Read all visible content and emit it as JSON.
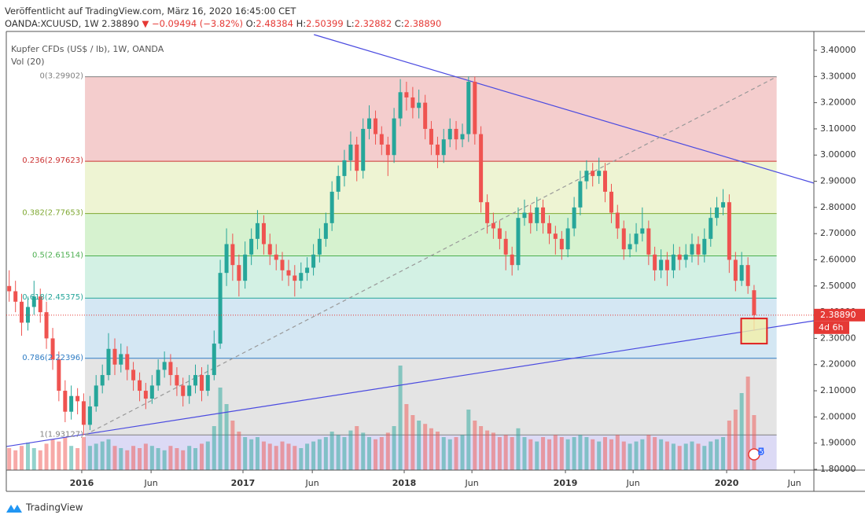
{
  "header": {
    "published": "Veröffentlicht auf TradingView.com, März 16, 2020 16:45:00 CET",
    "symbol": "OANDA:XCUUSD, 1W 2.38890",
    "change": "▼ −0.09494 (−3.82%)",
    "o_label": "O:",
    "o": "2.48384",
    "h_label": "H:",
    "h": "2.50399",
    "l_label": "L:",
    "l": "2.32882",
    "c_label": "C:",
    "c": "2.38890"
  },
  "legend": {
    "instrument": "Kupfer CFDs (US$ / lb), 1W, OANDA",
    "volume": "Vol (20)"
  },
  "footer": {
    "brand": "TradingView"
  },
  "chart_data": {
    "type": "candlestick",
    "up_color": "#26a69a",
    "down_color": "#ef5350",
    "xlim": [
      2015.532,
      2020.541
    ],
    "ylim": [
      1.797,
      3.472
    ],
    "grid": false,
    "xticks": [
      2016,
      {
        "value": 2016.43,
        "label": "Jun"
      },
      2017,
      {
        "value": 2017.43,
        "label": "Jun"
      },
      2018,
      {
        "value": 2018.42,
        "label": "Jun"
      },
      2019,
      {
        "value": 2019.42,
        "label": "Jun"
      },
      2020,
      {
        "value": 2020.42,
        "label": "Jun"
      }
    ],
    "yticks": [
      {
        "value": 3.4,
        "label": "3.40000"
      },
      {
        "value": 3.3,
        "label": "3.30000"
      },
      {
        "value": 3.2,
        "label": "3.20000"
      },
      {
        "value": 3.1,
        "label": "3.10000"
      },
      {
        "value": 3.0,
        "label": "3.00000"
      },
      {
        "value": 2.9,
        "label": "2.90000"
      },
      {
        "value": 2.8,
        "label": "2.80000"
      },
      {
        "value": 2.7,
        "label": "2.70000"
      },
      {
        "value": 2.6,
        "label": "2.60000"
      },
      {
        "value": 2.5,
        "label": "2.50000"
      },
      {
        "value": 2.4,
        "label": "2.40000"
      },
      {
        "value": 2.3,
        "label": "2.30000"
      },
      {
        "value": 2.2,
        "label": "2.20000"
      },
      {
        "value": 2.1,
        "label": "2.10000"
      },
      {
        "value": 2.0,
        "label": "2.00000"
      },
      {
        "value": 1.9,
        "label": "1.90000"
      },
      {
        "value": 1.8,
        "label": "1.80000"
      }
    ],
    "x": [
      2015.55,
      2015.589,
      2015.627,
      2015.666,
      2015.704,
      2015.743,
      2015.781,
      2015.82,
      2015.858,
      2015.897,
      2015.935,
      2015.974,
      2016.012,
      2016.051,
      2016.089,
      2016.128,
      2016.166,
      2016.205,
      2016.243,
      2016.282,
      2016.32,
      2016.359,
      2016.397,
      2016.436,
      2016.474,
      2016.513,
      2016.551,
      2016.59,
      2016.628,
      2016.667,
      2016.705,
      2016.744,
      2016.782,
      2016.821,
      2016.859,
      2016.898,
      2016.936,
      2016.975,
      2017.013,
      2017.052,
      2017.09,
      2017.129,
      2017.167,
      2017.206,
      2017.244,
      2017.283,
      2017.321,
      2017.36,
      2017.398,
      2017.437,
      2017.475,
      2017.514,
      2017.552,
      2017.591,
      2017.629,
      2017.668,
      2017.706,
      2017.745,
      2017.783,
      2017.822,
      2017.86,
      2017.899,
      2017.937,
      2017.976,
      2018.014,
      2018.053,
      2018.091,
      2018.13,
      2018.168,
      2018.207,
      2018.245,
      2018.284,
      2018.322,
      2018.361,
      2018.399,
      2018.438,
      2018.476,
      2018.515,
      2018.553,
      2018.592,
      2018.63,
      2018.669,
      2018.707,
      2018.746,
      2018.784,
      2018.823,
      2018.861,
      2018.9,
      2018.938,
      2018.977,
      2019.015,
      2019.054,
      2019.092,
      2019.131,
      2019.169,
      2019.208,
      2019.246,
      2019.285,
      2019.323,
      2019.362,
      2019.4,
      2019.439,
      2019.477,
      2019.516,
      2019.554,
      2019.593,
      2019.631,
      2019.67,
      2019.708,
      2019.747,
      2019.785,
      2019.824,
      2019.862,
      2019.901,
      2019.939,
      2019.978,
      2020.016,
      2020.055,
      2020.093,
      2020.132,
      2020.17
    ],
    "ohlc": [
      [
        2.5,
        2.56,
        2.44,
        2.48
      ],
      [
        2.48,
        2.52,
        2.4,
        2.44
      ],
      [
        2.44,
        2.47,
        2.31,
        2.36
      ],
      [
        2.36,
        2.46,
        2.33,
        2.42
      ],
      [
        2.42,
        2.52,
        2.39,
        2.46
      ],
      [
        2.46,
        2.49,
        2.36,
        2.4
      ],
      [
        2.4,
        2.44,
        2.26,
        2.3
      ],
      [
        2.3,
        2.34,
        2.18,
        2.22
      ],
      [
        2.22,
        2.25,
        2.06,
        2.1
      ],
      [
        2.1,
        2.14,
        1.98,
        2.02
      ],
      [
        2.02,
        2.12,
        1.99,
        2.08
      ],
      [
        2.08,
        2.11,
        2.01,
        2.06
      ],
      [
        2.06,
        2.09,
        1.93,
        1.97
      ],
      [
        1.97,
        2.08,
        1.95,
        2.04
      ],
      [
        2.04,
        2.16,
        2.02,
        2.12
      ],
      [
        2.12,
        2.2,
        2.09,
        2.16
      ],
      [
        2.16,
        2.32,
        2.14,
        2.26
      ],
      [
        2.26,
        2.3,
        2.16,
        2.2
      ],
      [
        2.2,
        2.28,
        2.17,
        2.24
      ],
      [
        2.24,
        2.27,
        2.14,
        2.18
      ],
      [
        2.18,
        2.21,
        2.1,
        2.14
      ],
      [
        2.14,
        2.17,
        2.06,
        2.1
      ],
      [
        2.1,
        2.13,
        2.03,
        2.07
      ],
      [
        2.07,
        2.16,
        2.05,
        2.12
      ],
      [
        2.12,
        2.22,
        2.1,
        2.18
      ],
      [
        2.18,
        2.25,
        2.15,
        2.21
      ],
      [
        2.21,
        2.24,
        2.12,
        2.16
      ],
      [
        2.16,
        2.19,
        2.08,
        2.12
      ],
      [
        2.12,
        2.15,
        2.04,
        2.08
      ],
      [
        2.08,
        2.16,
        2.05,
        2.12
      ],
      [
        2.12,
        2.2,
        2.09,
        2.16
      ],
      [
        2.16,
        2.19,
        2.06,
        2.1
      ],
      [
        2.1,
        2.2,
        2.08,
        2.16
      ],
      [
        2.16,
        2.33,
        2.14,
        2.28
      ],
      [
        2.28,
        2.6,
        2.26,
        2.55
      ],
      [
        2.55,
        2.72,
        2.5,
        2.66
      ],
      [
        2.66,
        2.7,
        2.52,
        2.58
      ],
      [
        2.58,
        2.62,
        2.46,
        2.52
      ],
      [
        2.52,
        2.67,
        2.49,
        2.62
      ],
      [
        2.62,
        2.72,
        2.58,
        2.68
      ],
      [
        2.68,
        2.79,
        2.64,
        2.74
      ],
      [
        2.74,
        2.77,
        2.62,
        2.66
      ],
      [
        2.66,
        2.7,
        2.58,
        2.62
      ],
      [
        2.62,
        2.66,
        2.56,
        2.6
      ],
      [
        2.6,
        2.63,
        2.52,
        2.56
      ],
      [
        2.56,
        2.6,
        2.5,
        2.54
      ],
      [
        2.54,
        2.58,
        2.46,
        2.52
      ],
      [
        2.52,
        2.59,
        2.49,
        2.55
      ],
      [
        2.55,
        2.61,
        2.52,
        2.57
      ],
      [
        2.57,
        2.66,
        2.54,
        2.62
      ],
      [
        2.62,
        2.72,
        2.59,
        2.68
      ],
      [
        2.68,
        2.78,
        2.65,
        2.74
      ],
      [
        2.74,
        2.9,
        2.71,
        2.86
      ],
      [
        2.86,
        2.96,
        2.83,
        2.92
      ],
      [
        2.92,
        3.02,
        2.88,
        2.98
      ],
      [
        2.98,
        3.09,
        2.94,
        3.04
      ],
      [
        3.04,
        3.07,
        2.9,
        2.94
      ],
      [
        2.94,
        3.14,
        2.91,
        3.1
      ],
      [
        3.1,
        3.19,
        3.06,
        3.14
      ],
      [
        3.14,
        3.17,
        3.04,
        3.08
      ],
      [
        3.08,
        3.11,
        3.0,
        3.04
      ],
      [
        3.04,
        3.07,
        2.92,
        3.0
      ],
      [
        3.0,
        3.18,
        2.97,
        3.14
      ],
      [
        3.14,
        3.29,
        3.11,
        3.24
      ],
      [
        3.24,
        3.28,
        3.17,
        3.22
      ],
      [
        3.22,
        3.26,
        3.14,
        3.18
      ],
      [
        3.18,
        3.25,
        3.14,
        3.2
      ],
      [
        3.2,
        3.23,
        3.06,
        3.1
      ],
      [
        3.1,
        3.13,
        3.0,
        3.04
      ],
      [
        3.04,
        3.07,
        2.95,
        3.0
      ],
      [
        3.0,
        3.1,
        2.97,
        3.06
      ],
      [
        3.06,
        3.14,
        3.03,
        3.1
      ],
      [
        3.1,
        3.13,
        3.02,
        3.06
      ],
      [
        3.06,
        3.12,
        3.03,
        3.08
      ],
      [
        3.08,
        3.3,
        3.05,
        3.28
      ],
      [
        3.28,
        3.3,
        3.04,
        3.08
      ],
      [
        3.08,
        3.11,
        2.78,
        2.82
      ],
      [
        2.82,
        2.85,
        2.7,
        2.74
      ],
      [
        2.74,
        2.78,
        2.68,
        2.72
      ],
      [
        2.72,
        2.75,
        2.64,
        2.68
      ],
      [
        2.68,
        2.71,
        2.56,
        2.62
      ],
      [
        2.62,
        2.65,
        2.54,
        2.58
      ],
      [
        2.58,
        2.8,
        2.56,
        2.76
      ],
      [
        2.76,
        2.83,
        2.73,
        2.78
      ],
      [
        2.78,
        2.81,
        2.7,
        2.74
      ],
      [
        2.74,
        2.84,
        2.71,
        2.8
      ],
      [
        2.8,
        2.83,
        2.7,
        2.74
      ],
      [
        2.74,
        2.77,
        2.66,
        2.7
      ],
      [
        2.7,
        2.73,
        2.62,
        2.68
      ],
      [
        2.68,
        2.71,
        2.6,
        2.64
      ],
      [
        2.64,
        2.76,
        2.61,
        2.72
      ],
      [
        2.72,
        2.84,
        2.69,
        2.8
      ],
      [
        2.8,
        2.94,
        2.77,
        2.9
      ],
      [
        2.9,
        2.98,
        2.87,
        2.94
      ],
      [
        2.94,
        2.97,
        2.88,
        2.92
      ],
      [
        2.92,
        2.99,
        2.89,
        2.94
      ],
      [
        2.94,
        2.97,
        2.82,
        2.86
      ],
      [
        2.86,
        2.89,
        2.74,
        2.78
      ],
      [
        2.78,
        2.81,
        2.68,
        2.72
      ],
      [
        2.72,
        2.75,
        2.6,
        2.64
      ],
      [
        2.64,
        2.7,
        2.61,
        2.66
      ],
      [
        2.66,
        2.74,
        2.63,
        2.7
      ],
      [
        2.7,
        2.8,
        2.67,
        2.72
      ],
      [
        2.72,
        2.75,
        2.58,
        2.62
      ],
      [
        2.62,
        2.65,
        2.52,
        2.56
      ],
      [
        2.56,
        2.64,
        2.53,
        2.6
      ],
      [
        2.6,
        2.63,
        2.5,
        2.56
      ],
      [
        2.56,
        2.66,
        2.53,
        2.62
      ],
      [
        2.62,
        2.65,
        2.56,
        2.6
      ],
      [
        2.6,
        2.66,
        2.57,
        2.62
      ],
      [
        2.62,
        2.7,
        2.59,
        2.66
      ],
      [
        2.66,
        2.69,
        2.58,
        2.62
      ],
      [
        2.62,
        2.72,
        2.59,
        2.68
      ],
      [
        2.68,
        2.8,
        2.65,
        2.76
      ],
      [
        2.76,
        2.84,
        2.73,
        2.8
      ],
      [
        2.8,
        2.87,
        2.77,
        2.82
      ],
      [
        2.82,
        2.85,
        2.55,
        2.6
      ],
      [
        2.6,
        2.63,
        2.48,
        2.52
      ],
      [
        2.52,
        2.63,
        2.5,
        2.58
      ],
      [
        2.58,
        2.61,
        2.47,
        2.5
      ],
      [
        2.48384,
        2.50399,
        2.32882,
        2.3889
      ]
    ],
    "volume": [
      20,
      18,
      22,
      25,
      20,
      18,
      24,
      28,
      26,
      30,
      22,
      20,
      30,
      22,
      24,
      26,
      28,
      22,
      20,
      18,
      22,
      20,
      24,
      22,
      20,
      18,
      22,
      20,
      18,
      22,
      20,
      24,
      26,
      40,
      75,
      60,
      45,
      35,
      30,
      28,
      30,
      26,
      24,
      22,
      26,
      24,
      22,
      20,
      24,
      26,
      28,
      30,
      35,
      32,
      30,
      36,
      40,
      34,
      30,
      28,
      30,
      34,
      40,
      95,
      60,
      50,
      45,
      42,
      38,
      35,
      30,
      28,
      30,
      32,
      55,
      45,
      40,
      36,
      34,
      30,
      32,
      30,
      38,
      30,
      28,
      26,
      30,
      28,
      32,
      30,
      28,
      30,
      32,
      30,
      28,
      26,
      30,
      28,
      32,
      26,
      24,
      26,
      28,
      32,
      30,
      28,
      26,
      24,
      22,
      24,
      26,
      24,
      22,
      26,
      28,
      30,
      45,
      55,
      70,
      85,
      50
    ],
    "fib": {
      "x": [
        2016.02,
        2020.31
      ],
      "levels": [
        {
          "label": "0(3.29902)",
          "price": 3.29902,
          "color": "#808080",
          "fill": "#f4cdcd"
        },
        {
          "label": "0.236(2.97623)",
          "price": 2.97623,
          "color": "#cc3333",
          "fill": "#eef4d3"
        },
        {
          "label": "0.382(2.77653)",
          "price": 2.77653,
          "color": "#7fa832",
          "fill": "#d6f2cf"
        },
        {
          "label": "0.5(2.61514)",
          "price": 2.61514,
          "color": "#4caf50",
          "fill": "#d3f1e4"
        },
        {
          "label": "0.618(2.45375)",
          "price": 2.45375,
          "color": "#26a69a",
          "fill": "#d4e7f3"
        },
        {
          "label": "0.786(2.22396)",
          "price": 2.22396,
          "color": "#2e7cc4",
          "fill": "#e4e4e4"
        },
        {
          "label": "1(1.93127)",
          "price": 1.93127,
          "color": "#808080",
          "fill": "#dcdaf5"
        }
      ]
    },
    "trendlines": [
      {
        "x": [
          2017.44,
          2020.54
        ],
        "y": [
          3.46,
          2.893
        ],
        "color": "#4a4ae0",
        "dashed": false
      },
      {
        "x": [
          2015.53,
          2020.54
        ],
        "y": [
          1.887,
          2.367
        ],
        "color": "#4a4ae0",
        "dashed": false
      },
      {
        "x": [
          2016.02,
          2020.31
        ],
        "y": [
          1.93127,
          3.29902
        ],
        "color": "#999999",
        "dashed": true
      }
    ],
    "highlight": {
      "x": [
        2020.09,
        2020.25
      ],
      "y": [
        2.28,
        2.376
      ],
      "color": "#e02020",
      "fill": "#f2f0a8"
    },
    "last_price": {
      "label": "2.38890",
      "color": "#e53935"
    },
    "countdown": "4d 6h",
    "badge": "5"
  }
}
